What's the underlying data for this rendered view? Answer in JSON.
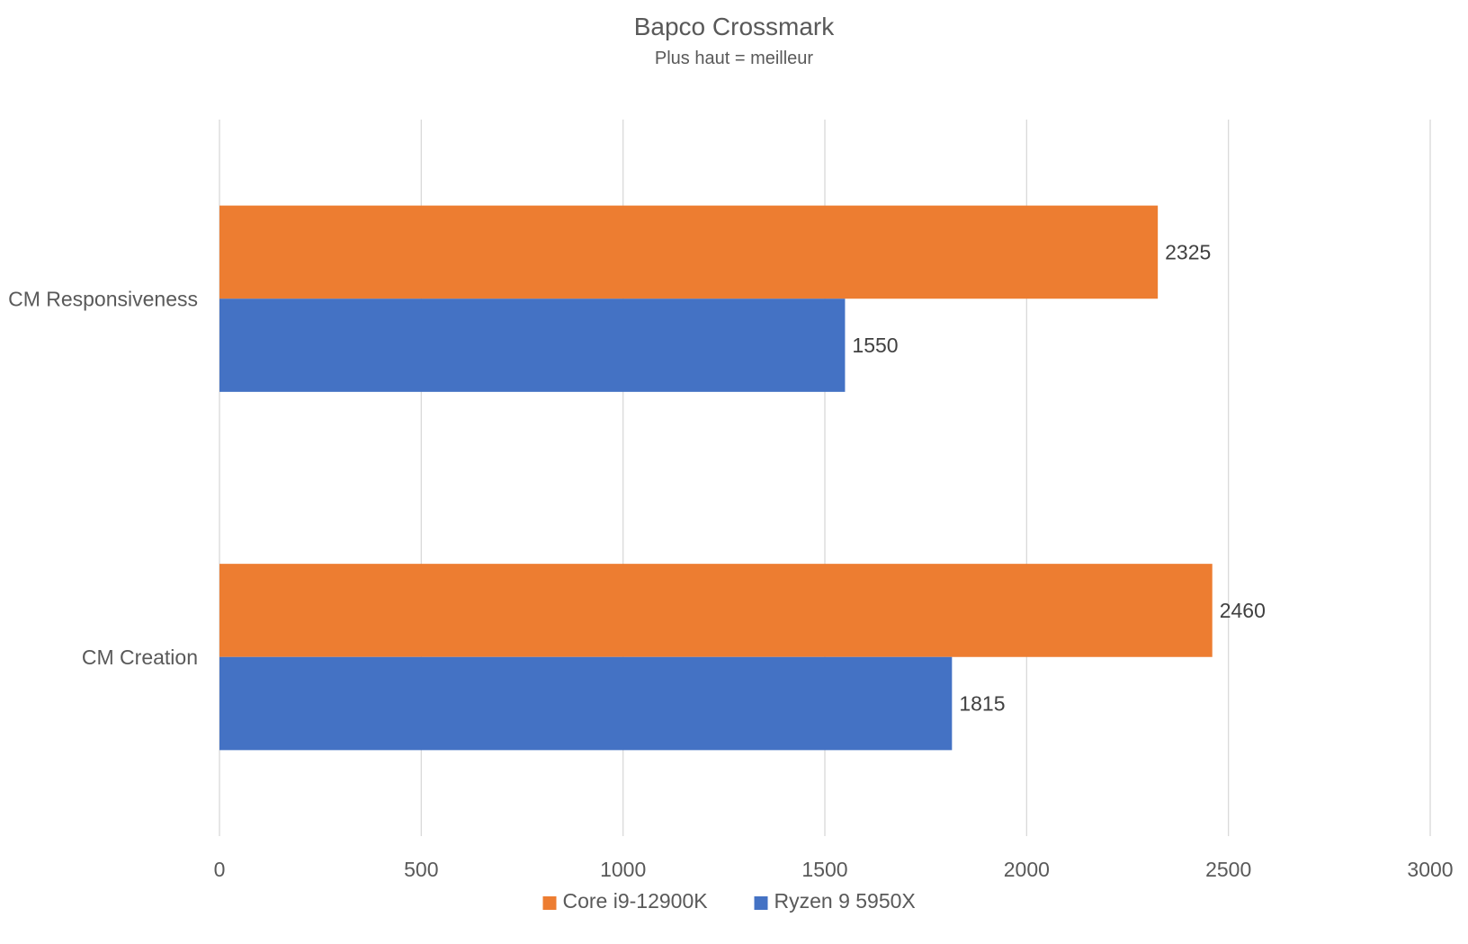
{
  "chart_data": {
    "type": "bar",
    "orientation": "horizontal",
    "title": "Bapco Crossmark",
    "subtitle": "Plus haut = meilleur",
    "categories": [
      "CM Responsiveness",
      "CM Creation"
    ],
    "series": [
      {
        "name": "Core i9-12900K",
        "values": [
          2325,
          2460
        ],
        "color": "#ED7D31"
      },
      {
        "name": "Ryzen 9 5950X",
        "values": [
          1550,
          1815
        ],
        "color": "#4472C4"
      }
    ],
    "xlim": [
      0,
      3000
    ],
    "x_ticks": [
      0,
      500,
      1000,
      1500,
      2000,
      2500,
      3000
    ],
    "grid": true,
    "legend": "bottom",
    "data_labels": true
  }
}
